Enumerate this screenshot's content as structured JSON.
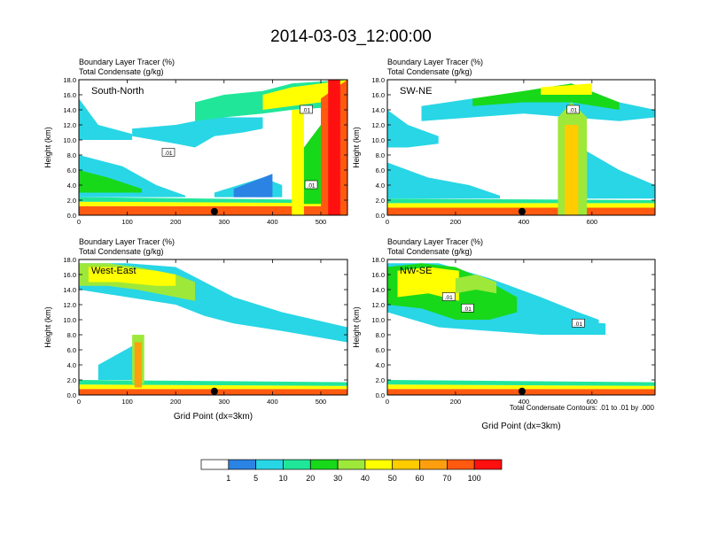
{
  "title": "2014-03-03_12:00:00",
  "chart_data": {
    "type": "heatmap",
    "colorbar": {
      "colors": [
        "#ffffff",
        "#2b83e3",
        "#28d6e6",
        "#20e69a",
        "#18d81a",
        "#9ee83a",
        "#ffff00",
        "#ffcc00",
        "#ff9f10",
        "#ff5a10",
        "#ff1010"
      ],
      "labels": [
        "1",
        "5",
        "10",
        "20",
        "30",
        "40",
        "50",
        "60",
        "70",
        "100"
      ]
    },
    "footnote": "Total Condensate Contours: .01 to .01 by .000",
    "panels": [
      {
        "id": "south-north",
        "label": "South-North",
        "subtitle_left": "Boundary Layer Tracer",
        "subtitle_left_unit": "(%)",
        "subtitle_left2": "Total Condensate",
        "subtitle_left2_unit": "(g/kg)",
        "ylabel": "Height (km)",
        "xlabel": "",
        "xlim": [
          0,
          555
        ],
        "ylim": [
          0,
          18
        ],
        "xticks": [
          0,
          100,
          200,
          300,
          400,
          500
        ],
        "yticks": [
          "0.0",
          "2.0",
          "4.0",
          "6.0",
          "8.0",
          "10.0",
          "12.0",
          "14.0",
          "16.0",
          "18.0"
        ],
        "marker_x": 280,
        "contour_labels": [
          {
            "text": ".01",
            "x": 185,
            "y": 8.3
          },
          {
            "text": ".01",
            "x": 470,
            "y": 14.0
          },
          {
            "text": ".01",
            "x": 480,
            "y": 4.0
          }
        ]
      },
      {
        "id": "sw-ne",
        "label": "SW-NE",
        "subtitle_left": "Boundary Layer Tracer",
        "subtitle_left_unit": "(%)",
        "subtitle_left2": "Total Condensate",
        "subtitle_left2_unit": "(g/kg)",
        "ylabel": "Height (km)",
        "xlabel": "",
        "xlim": [
          0,
          785
        ],
        "ylim": [
          0,
          18
        ],
        "xticks": [
          0,
          200,
          400,
          600
        ],
        "yticks": [
          "0.0",
          "2.0",
          "4.0",
          "6.0",
          "8.0",
          "10.0",
          "12.0",
          "14.0",
          "16.0",
          "18.0"
        ],
        "marker_x": 395,
        "contour_labels": [
          {
            "text": ".01",
            "x": 545,
            "y": 14.0
          }
        ]
      },
      {
        "id": "west-east",
        "label": "West-East",
        "subtitle_left": "Boundary Layer Tracer",
        "subtitle_left_unit": "(%)",
        "subtitle_left2": "Total Condensate",
        "subtitle_left2_unit": "(g/kg)",
        "ylabel": "Height (km)",
        "xlabel": "Grid Point (dx=3km)",
        "xlim": [
          0,
          555
        ],
        "ylim": [
          0,
          18
        ],
        "xticks": [
          0,
          100,
          200,
          300,
          400,
          500
        ],
        "yticks": [
          "0.0",
          "2.0",
          "4.0",
          "6.0",
          "8.0",
          "10.0",
          "12.0",
          "14.0",
          "16.0",
          "18.0"
        ],
        "marker_x": 280,
        "contour_labels": []
      },
      {
        "id": "nw-se",
        "label": "NW-SE",
        "subtitle_left": "Boundary Layer Tracer",
        "subtitle_left_unit": "(%)",
        "subtitle_left2": "Total Condensate",
        "subtitle_left2_unit": "(g/kg)",
        "ylabel": "Height (km)",
        "xlabel": "Grid Point (dx=3km)",
        "xlim": [
          0,
          785
        ],
        "ylim": [
          0,
          18
        ],
        "xticks": [
          0,
          200,
          400,
          600
        ],
        "yticks": [
          "0.0",
          "2.0",
          "4.0",
          "6.0",
          "8.0",
          "10.0",
          "12.0",
          "14.0",
          "16.0",
          "18.0"
        ],
        "marker_x": 395,
        "contour_labels": [
          {
            "text": ".01",
            "x": 180,
            "y": 13.0
          },
          {
            "text": ".01",
            "x": 235,
            "y": 11.5
          },
          {
            "text": ".01",
            "x": 560,
            "y": 9.5
          }
        ]
      }
    ],
    "tracer_features": [
      [
        {
          "type": "band",
          "x": [
            0,
            555
          ],
          "y0": [
            0,
            0
          ],
          "y1": [
            1.2,
            1.2
          ],
          "level": 9
        },
        {
          "type": "band",
          "x": [
            0,
            555
          ],
          "y0": [
            1.2,
            1.2
          ],
          "y1": [
            1.8,
            1.6
          ],
          "level": 6
        },
        {
          "type": "band",
          "x": [
            0,
            555
          ],
          "y0": [
            1.8,
            1.6
          ],
          "y1": [
            2.4,
            2.0
          ],
          "level": 3
        },
        {
          "type": "band",
          "x": [
            0,
            90,
            160,
            220
          ],
          "y0": [
            2.4,
            2.4,
            2.4,
            2.4
          ],
          "y1": [
            8.0,
            6.5,
            4.0,
            2.6
          ],
          "level": 2
        },
        {
          "type": "band",
          "x": [
            0,
            60,
            130
          ],
          "y0": [
            3.0,
            3.0,
            3.0
          ],
          "y1": [
            6.0,
            5.0,
            3.5
          ],
          "level": 4
        },
        {
          "type": "band",
          "x": [
            0,
            40,
            110
          ],
          "y0": [
            10.0,
            10.0,
            10.0
          ],
          "y1": [
            15.5,
            12.0,
            10.8
          ],
          "level": 2
        },
        {
          "type": "band",
          "x": [
            110,
            200,
            240,
            280,
            340,
            380
          ],
          "y0": [
            10.5,
            9.5,
            9.0,
            10.5,
            11.0,
            11.5
          ],
          "y1": [
            11.5,
            12.0,
            12.5,
            13.0,
            13.0,
            13.0
          ],
          "level": 2
        },
        {
          "type": "band",
          "x": [
            240,
            300,
            380,
            440,
            555
          ],
          "y0": [
            12.5,
            13.0,
            13.5,
            14.0,
            14.5
          ],
          "y1": [
            15.0,
            16.0,
            16.5,
            17.5,
            18.0
          ],
          "level": 3
        },
        {
          "type": "band",
          "x": [
            380,
            440,
            500,
            555
          ],
          "y0": [
            14.0,
            14.5,
            15.0,
            15.5
          ],
          "y1": [
            16.0,
            17.0,
            17.5,
            18.0
          ],
          "level": 6
        },
        {
          "type": "band",
          "x": [
            280,
            330,
            380,
            420
          ],
          "y0": [
            2.4,
            2.4,
            2.4,
            2.4
          ],
          "y1": [
            3.0,
            4.0,
            5.0,
            4.0
          ],
          "level": 2
        },
        {
          "type": "band",
          "x": [
            320,
            400
          ],
          "y0": [
            2.4,
            2.4
          ],
          "y1": [
            3.5,
            5.5
          ],
          "level": 1
        },
        {
          "type": "band",
          "x": [
            440,
            465
          ],
          "y0": [
            0,
            0
          ],
          "y1": [
            14.0,
            14.0
          ],
          "level": 6
        },
        {
          "type": "band",
          "x": [
            465,
            500
          ],
          "y0": [
            1.5,
            1.5
          ],
          "y1": [
            9.0,
            12.0
          ],
          "level": 4
        },
        {
          "type": "band",
          "x": [
            500,
            555
          ],
          "y0": [
            0,
            0
          ],
          "y1": [
            15.5,
            18.0
          ],
          "level": 9
        },
        {
          "type": "band",
          "x": [
            515,
            540
          ],
          "y0": [
            0,
            0
          ],
          "y1": [
            18.0,
            18.0
          ],
          "level": 10
        }
      ],
      [
        {
          "type": "band",
          "x": [
            0,
            785
          ],
          "y0": [
            0,
            0
          ],
          "y1": [
            1.0,
            1.0
          ],
          "level": 9
        },
        {
          "type": "band",
          "x": [
            0,
            785
          ],
          "y0": [
            1.0,
            1.0
          ],
          "y1": [
            1.6,
            1.6
          ],
          "level": 6
        },
        {
          "type": "band",
          "x": [
            0,
            785
          ],
          "y0": [
            1.6,
            1.6
          ],
          "y1": [
            2.2,
            2.0
          ],
          "level": 3
        },
        {
          "type": "band",
          "x": [
            0,
            120,
            240,
            330
          ],
          "y0": [
            2.2,
            2.2,
            2.2,
            2.2
          ],
          "y1": [
            7.0,
            5.0,
            4.0,
            2.6
          ],
          "level": 2
        },
        {
          "type": "band",
          "x": [
            0,
            60,
            150
          ],
          "y0": [
            9.0,
            9.0,
            9.5
          ],
          "y1": [
            14.0,
            12.0,
            10.5
          ],
          "level": 2
        },
        {
          "type": "band",
          "x": [
            100,
            250,
            400,
            540,
            680,
            785
          ],
          "y0": [
            12.5,
            13.0,
            13.5,
            13.0,
            12.5,
            13.0
          ],
          "y1": [
            14.5,
            15.5,
            16.0,
            16.5,
            15.0,
            14.0
          ],
          "level": 2
        },
        {
          "type": "band",
          "x": [
            250,
            400,
            540,
            680
          ],
          "y0": [
            14.5,
            15.0,
            15.0,
            14.0
          ],
          "y1": [
            15.5,
            16.5,
            17.5,
            15.0
          ],
          "level": 4
        },
        {
          "type": "band",
          "x": [
            450,
            600
          ],
          "y0": [
            16.0,
            16.0
          ],
          "y1": [
            17.0,
            17.5
          ],
          "level": 6
        },
        {
          "type": "band",
          "x": [
            500,
            540,
            585
          ],
          "y0": [
            0,
            0,
            0
          ],
          "y1": [
            13.0,
            15.0,
            13.0
          ],
          "level": 5
        },
        {
          "type": "band",
          "x": [
            520,
            560
          ],
          "y0": [
            0,
            0
          ],
          "y1": [
            12.0,
            12.0
          ],
          "level": 7
        },
        {
          "type": "band",
          "x": [
            585,
            680,
            785
          ],
          "y0": [
            2.2,
            2.2,
            2.2
          ],
          "y1": [
            8.5,
            6.0,
            4.0
          ],
          "level": 2
        }
      ],
      [
        {
          "type": "band",
          "x": [
            0,
            555
          ],
          "y0": [
            0,
            0
          ],
          "y1": [
            0.8,
            0.8
          ],
          "level": 9
        },
        {
          "type": "band",
          "x": [
            0,
            555
          ],
          "y0": [
            0.8,
            0.8
          ],
          "y1": [
            1.4,
            1.2
          ],
          "level": 6
        },
        {
          "type": "band",
          "x": [
            0,
            555
          ],
          "y0": [
            1.4,
            1.2
          ],
          "y1": [
            2.0,
            1.7
          ],
          "level": 3
        },
        {
          "type": "band",
          "x": [
            0,
            100,
            200,
            260,
            320,
            420,
            555
          ],
          "y0": [
            14.0,
            13.0,
            12.0,
            10.5,
            9.5,
            8.5,
            7.0
          ],
          "y1": [
            17.5,
            17.5,
            17.0,
            15.0,
            13.0,
            11.0,
            9.0
          ],
          "level": 2
        },
        {
          "type": "band",
          "x": [
            0,
            60,
            120,
            200,
            240
          ],
          "y0": [
            14.5,
            14.5,
            14.0,
            13.0,
            12.5
          ],
          "y1": [
            17.5,
            17.5,
            17.0,
            16.0,
            15.0
          ],
          "level": 5
        },
        {
          "type": "band",
          "x": [
            20,
            80,
            160,
            200
          ],
          "y0": [
            15.0,
            15.0,
            14.5,
            14.5
          ],
          "y1": [
            17.0,
            17.0,
            16.5,
            16.0
          ],
          "level": 6
        },
        {
          "type": "band",
          "x": [
            40,
            110,
            130
          ],
          "y0": [
            2.0,
            2.0,
            2.0
          ],
          "y1": [
            4.0,
            6.5,
            7.5
          ],
          "level": 2
        },
        {
          "type": "band",
          "x": [
            110,
            135
          ],
          "y0": [
            1.5,
            1.5
          ],
          "y1": [
            8.0,
            8.0
          ],
          "level": 5
        },
        {
          "type": "band",
          "x": [
            115,
            130
          ],
          "y0": [
            1.0,
            1.0
          ],
          "y1": [
            7.0,
            7.0
          ],
          "level": 8
        }
      ],
      [
        {
          "type": "band",
          "x": [
            0,
            785
          ],
          "y0": [
            0,
            0
          ],
          "y1": [
            0.8,
            0.8
          ],
          "level": 9
        },
        {
          "type": "band",
          "x": [
            0,
            785
          ],
          "y0": [
            0.8,
            0.8
          ],
          "y1": [
            1.4,
            1.2
          ],
          "level": 6
        },
        {
          "type": "band",
          "x": [
            0,
            785
          ],
          "y0": [
            1.4,
            1.2
          ],
          "y1": [
            2.0,
            1.7
          ],
          "level": 3
        },
        {
          "type": "band",
          "x": [
            0,
            150,
            300,
            450,
            560,
            620
          ],
          "y0": [
            11.0,
            9.0,
            8.5,
            8.0,
            8.0,
            8.5
          ],
          "y1": [
            17.5,
            17.5,
            15.5,
            13.0,
            11.0,
            10.0
          ],
          "level": 2
        },
        {
          "type": "band",
          "x": [
            0,
            100,
            200,
            300,
            380
          ],
          "y0": [
            12.0,
            11.5,
            10.0,
            10.0,
            11.0
          ],
          "y1": [
            17.0,
            17.5,
            17.0,
            15.0,
            13.0
          ],
          "level": 4
        },
        {
          "type": "band",
          "x": [
            30,
            120,
            210
          ],
          "y0": [
            13.0,
            13.5,
            12.5
          ],
          "y1": [
            16.5,
            17.0,
            16.5
          ],
          "level": 6
        },
        {
          "type": "band",
          "x": [
            200,
            260,
            320
          ],
          "y0": [
            13.5,
            14.0,
            13.5
          ],
          "y1": [
            15.5,
            16.0,
            15.0
          ],
          "level": 5
        },
        {
          "type": "band",
          "x": [
            500,
            640
          ],
          "y0": [
            8.0,
            8.0
          ],
          "y1": [
            10.0,
            9.5
          ],
          "level": 2
        }
      ]
    ]
  }
}
